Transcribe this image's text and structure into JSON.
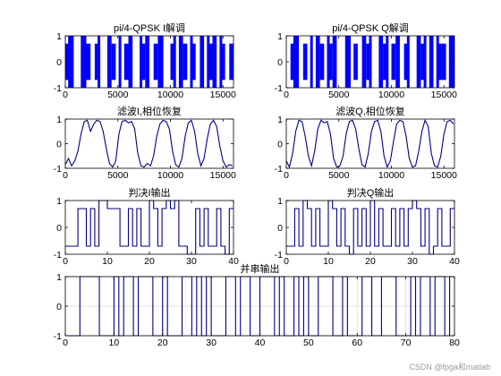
{
  "watermark": "CSDN @fpga和matlab",
  "colors": {
    "dense_fill": "#0000ff",
    "line": "#00008b",
    "axes": "#000000",
    "grid": "#d9d9d9"
  },
  "chart_data": [
    {
      "id": "i_demod",
      "type": "area",
      "title": "pi/4-QPSK I解调",
      "xlabel": "",
      "ylabel": "",
      "xlim": [
        0,
        16000
      ],
      "ylim": [
        -1,
        1
      ],
      "x_ticks": [
        0,
        5000,
        10000,
        15000
      ],
      "y_ticks": [
        -1,
        0,
        1
      ],
      "grid": false,
      "samples_per_symbol": 400,
      "symbols": [
        0.7,
        1,
        -0.7,
        0,
        1,
        0.7,
        -1,
        0.7,
        0,
        -0.7,
        1,
        0.7,
        -1,
        -0.7,
        0.7,
        1,
        0,
        -1,
        0.7,
        1,
        -0.7,
        0.7,
        1,
        -1,
        0,
        0.7,
        -0.7,
        1,
        0.7,
        -1,
        0.7,
        0,
        1,
        -0.7,
        0.7,
        1,
        -1,
        0.7,
        -0.7,
        0.7
      ],
      "dip_symbols": [
        1,
        4,
        8,
        13,
        18,
        23,
        26,
        30,
        34,
        37
      ]
    },
    {
      "id": "q_demod",
      "type": "area",
      "title": "pi/4-QPSK Q解调",
      "xlabel": "",
      "ylabel": "",
      "xlim": [
        0,
        16000
      ],
      "ylim": [
        -1,
        1
      ],
      "x_ticks": [
        0,
        5000,
        10000,
        15000
      ],
      "y_ticks": [
        -1,
        0,
        1
      ],
      "grid": false,
      "samples_per_symbol": 400,
      "symbols": [
        -0.7,
        0.7,
        1,
        -1,
        0.7,
        0,
        -0.7,
        1,
        0.7,
        -1,
        0.7,
        1,
        -0.7,
        0,
        1,
        -0.7,
        0.7,
        -1,
        1,
        0.7,
        -0.7,
        0,
        1,
        0.7,
        -1,
        0.7,
        1,
        -0.7,
        0.7,
        -1,
        0,
        1,
        0.7,
        -0.7,
        1,
        -1,
        0.7,
        0.7,
        -0.7,
        1
      ],
      "dip_symbols": [
        2,
        6,
        10,
        15,
        20,
        24,
        29,
        33,
        36,
        39
      ]
    },
    {
      "id": "i_filtered",
      "type": "line",
      "title": "滤波I,相位恢复",
      "xlabel": "",
      "ylabel": "",
      "xlim": [
        0,
        16000
      ],
      "ylim": [
        -1,
        1
      ],
      "x_ticks": [
        0,
        5000,
        10000,
        15000
      ],
      "y_ticks": [
        -1,
        0,
        1
      ],
      "grid": false,
      "x": [
        0,
        300,
        600,
        900,
        1200,
        1500,
        1800,
        2100,
        2400,
        2700,
        3000,
        3300,
        3600,
        3900,
        4200,
        4500,
        4800,
        5100,
        5400,
        5700,
        6000,
        6300,
        6600,
        6900,
        7200,
        7500,
        7800,
        8100,
        8400,
        8700,
        9000,
        9300,
        9600,
        9900,
        10200,
        10500,
        10800,
        11100,
        11400,
        11700,
        12000,
        12300,
        12600,
        12900,
        13200,
        13500,
        13800,
        14100,
        14400,
        14700,
        15000,
        15300,
        15600,
        15900
      ],
      "y": [
        -0.85,
        -0.6,
        -0.9,
        -0.7,
        -0.3,
        0.4,
        0.9,
        0.95,
        0.5,
        0.8,
        0.95,
        0.9,
        0.5,
        -0.2,
        -0.8,
        -0.95,
        -0.7,
        0.4,
        0.9,
        0.95,
        0.85,
        0.9,
        0.6,
        -0.4,
        -0.9,
        -0.95,
        -0.8,
        -0.9,
        -0.5,
        0.3,
        0.8,
        0.95,
        0.9,
        0.6,
        -0.3,
        -0.85,
        -0.95,
        -0.6,
        0.3,
        0.85,
        0.95,
        0.5,
        -0.4,
        -0.9,
        -0.6,
        0.2,
        0.8,
        0.95,
        0.7,
        -0.1,
        -0.7,
        -0.95,
        -0.85,
        -0.9
      ]
    },
    {
      "id": "q_filtered",
      "type": "line",
      "title": "滤波Q,相位恢复",
      "xlabel": "",
      "ylabel": "",
      "xlim": [
        0,
        16000
      ],
      "ylim": [
        -1,
        1
      ],
      "x_ticks": [
        0,
        5000,
        10000,
        15000
      ],
      "y_ticks": [
        -1,
        0,
        1
      ],
      "grid": false,
      "x": [
        0,
        300,
        600,
        900,
        1200,
        1500,
        1800,
        2100,
        2400,
        2700,
        3000,
        3300,
        3600,
        3900,
        4200,
        4500,
        4800,
        5100,
        5400,
        5700,
        6000,
        6300,
        6600,
        6900,
        7200,
        7500,
        7800,
        8100,
        8400,
        8700,
        9000,
        9300,
        9600,
        9900,
        10200,
        10500,
        10800,
        11100,
        11400,
        11700,
        12000,
        12300,
        12600,
        12900,
        13200,
        13500,
        13800,
        14100,
        14400,
        14700,
        15000,
        15300,
        15600,
        15900
      ],
      "y": [
        -0.7,
        -0.95,
        -0.4,
        0.5,
        0.95,
        0.9,
        0.3,
        -0.5,
        -0.9,
        -0.3,
        0.6,
        0.95,
        0.85,
        0.9,
        0.4,
        -0.6,
        -0.95,
        -0.9,
        -0.5,
        0.4,
        0.9,
        0.95,
        0.6,
        -0.2,
        -0.85,
        -0.95,
        -0.4,
        0.5,
        0.9,
        0.95,
        0.5,
        -0.5,
        -0.95,
        -0.7,
        0.1,
        0.8,
        0.95,
        0.9,
        0.3,
        -0.6,
        -0.95,
        -0.9,
        -0.3,
        0.5,
        0.95,
        0.7,
        -0.4,
        -0.9,
        -0.95,
        -0.5,
        0.4,
        0.9,
        0.95,
        0.8
      ]
    },
    {
      "id": "i_decision",
      "type": "line",
      "step": true,
      "title": "判决I输出",
      "xlabel": "",
      "ylabel": "",
      "xlim": [
        0,
        40
      ],
      "ylim": [
        -1,
        1
      ],
      "x_ticks": [
        0,
        10,
        20,
        30,
        40
      ],
      "y_ticks": [
        -1,
        0,
        1
      ],
      "grid": false,
      "x": [
        0,
        1,
        2,
        3,
        4,
        5,
        6,
        7,
        8,
        9,
        10,
        11,
        12,
        13,
        14,
        15,
        16,
        17,
        18,
        19,
        20,
        21,
        22,
        23,
        24,
        25,
        26,
        27,
        28,
        29,
        30,
        31,
        32,
        33,
        34,
        35,
        36,
        37,
        38,
        39
      ],
      "y": [
        -0.7,
        -0.7,
        -0.7,
        0.7,
        0.7,
        -0.7,
        0.7,
        -0.7,
        1,
        1,
        0.7,
        0.7,
        0.7,
        -0.7,
        -0.7,
        0.7,
        -0.7,
        0.7,
        -0.7,
        -0.7,
        1,
        0.7,
        -0.7,
        0.7,
        1,
        0.7,
        1,
        -0.7,
        -0.7,
        -1,
        -1,
        0.7,
        -0.7,
        0.7,
        -0.7,
        -0.7,
        0.7,
        -0.7,
        -1,
        0.7
      ]
    },
    {
      "id": "q_decision",
      "type": "line",
      "step": true,
      "title": "判决Q输出",
      "xlabel": "",
      "ylabel": "",
      "xlim": [
        0,
        40
      ],
      "ylim": [
        -1,
        1
      ],
      "x_ticks": [
        0,
        10,
        20,
        30,
        40
      ],
      "y_ticks": [
        -1,
        0,
        1
      ],
      "grid": false,
      "x": [
        0,
        1,
        2,
        3,
        4,
        5,
        6,
        7,
        8,
        9,
        10,
        11,
        12,
        13,
        14,
        15,
        16,
        17,
        18,
        19,
        20,
        21,
        22,
        23,
        24,
        25,
        26,
        27,
        28,
        29,
        30,
        31,
        32,
        33,
        34,
        35,
        36,
        37,
        38,
        39
      ],
      "y": [
        -0.7,
        -0.7,
        0.7,
        -0.7,
        1,
        0.7,
        -0.7,
        0.7,
        -0.7,
        -0.7,
        1,
        0.7,
        -0.7,
        0.7,
        -0.7,
        -1,
        0.7,
        -0.7,
        0.7,
        -0.7,
        1,
        -0.7,
        0.7,
        -0.7,
        -0.7,
        0.7,
        -0.7,
        0.7,
        -0.7,
        0.7,
        1,
        0.7,
        -0.7,
        0.7,
        -1,
        -0.7,
        0.7,
        -0.7,
        -0.7,
        0.7
      ]
    },
    {
      "id": "parallel_serial",
      "type": "line",
      "step": true,
      "title": "并串输出",
      "xlabel": "",
      "ylabel": "",
      "xlim": [
        0,
        80
      ],
      "ylim": [
        -1,
        1
      ],
      "x_ticks": [
        0,
        10,
        20,
        30,
        40,
        50,
        60,
        70,
        80
      ],
      "y_ticks": [
        -1,
        0,
        1
      ],
      "grid": true,
      "x": [
        0,
        1,
        2,
        3,
        4,
        5,
        6,
        7,
        8,
        9,
        10,
        11,
        12,
        13,
        14,
        15,
        16,
        17,
        18,
        19,
        20,
        21,
        22,
        23,
        24,
        25,
        26,
        27,
        28,
        29,
        30,
        31,
        32,
        33,
        34,
        35,
        36,
        37,
        38,
        39,
        40,
        41,
        42,
        43,
        44,
        45,
        46,
        47,
        48,
        49,
        50,
        51,
        52,
        53,
        54,
        55,
        56,
        57,
        58,
        59,
        60,
        61,
        62,
        63,
        64,
        65,
        66,
        67,
        68,
        69,
        70,
        71,
        72,
        73,
        74,
        75,
        76,
        77,
        78,
        79
      ],
      "y": [
        -1,
        -1,
        -1,
        1,
        1,
        1,
        1,
        -1,
        -1,
        -1,
        1,
        -1,
        1,
        1,
        -1,
        1,
        1,
        1,
        -1,
        -1,
        1,
        -1,
        -1,
        -1,
        1,
        1,
        -1,
        1,
        -1,
        1,
        -1,
        -1,
        -1,
        1,
        1,
        -1,
        1,
        1,
        -1,
        -1,
        1,
        1,
        1,
        -1,
        1,
        -1,
        -1,
        1,
        -1,
        1,
        -1,
        -1,
        1,
        1,
        1,
        -1,
        -1,
        1,
        -1,
        -1,
        -1,
        1,
        1,
        -1,
        -1,
        1,
        1,
        1,
        -1,
        -1,
        -1,
        1,
        -1,
        1,
        1,
        -1,
        1,
        1,
        -1,
        1
      ]
    }
  ]
}
